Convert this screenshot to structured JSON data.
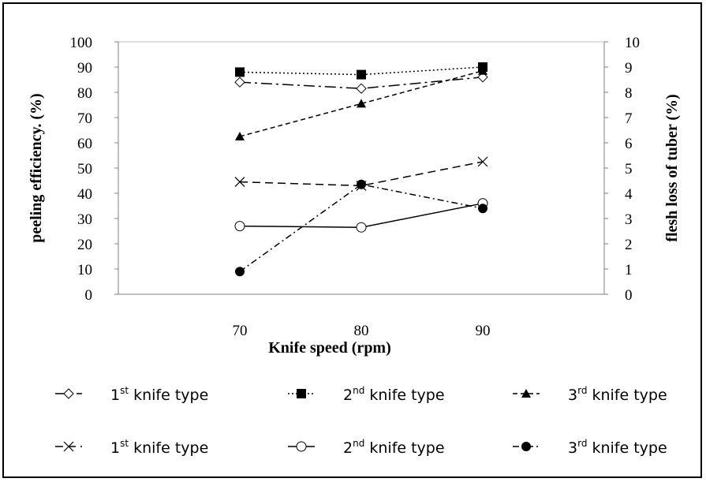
{
  "chart_data": {
    "type": "line",
    "x_label": "Knife speed (rpm)",
    "y_left_label": "peeling  efficiency. (%)",
    "y_right_label": "flesh loss of tuber (%)",
    "x_ticks": [
      "70",
      "80",
      "90"
    ],
    "x": [
      70,
      80,
      90
    ],
    "x_range": [
      60,
      100
    ],
    "y_left_range": [
      0,
      100
    ],
    "y_left_ticks": [
      "0",
      "10",
      "20",
      "30",
      "40",
      "50",
      "60",
      "70",
      "80",
      "90",
      "100"
    ],
    "y_right_range": [
      0,
      10
    ],
    "y_right_ticks": [
      "0",
      "1",
      "2",
      "3",
      "4",
      "5",
      "6",
      "7",
      "8",
      "9",
      "10"
    ],
    "grid": false,
    "legend_position": "bottom",
    "series": [
      {
        "name_num": "1",
        "name_sup": "st",
        "name_rest": " knife type",
        "axis": "left",
        "marker": "diamond-open",
        "dash": "longdashdot",
        "values": [
          84,
          81.5,
          86
        ]
      },
      {
        "name_num": "2",
        "name_sup": "nd",
        "name_rest": " knife type",
        "axis": "left",
        "marker": "square-filled",
        "dash": "dotted",
        "values": [
          88,
          87,
          90
        ]
      },
      {
        "name_num": "3",
        "name_sup": "rd",
        "name_rest": " knife type",
        "axis": "left",
        "marker": "triangle-filled",
        "dash": "dashed",
        "values": [
          62.5,
          75.5,
          88.5
        ]
      },
      {
        "name_num": "1",
        "name_sup": "st",
        "name_rest": " knife type",
        "axis": "right",
        "marker": "x",
        "dash": "longdash",
        "values": [
          4.45,
          4.3,
          5.25
        ]
      },
      {
        "name_num": "2",
        "name_sup": "nd",
        "name_rest": "  knife type",
        "axis": "right",
        "marker": "circle-open",
        "dash": "solid",
        "values": [
          2.7,
          2.65,
          3.6
        ]
      },
      {
        "name_num": "3",
        "name_sup": "rd",
        "name_rest": " knife type",
        "axis": "right",
        "marker": "circle-filled",
        "dash": "dashdot",
        "values": [
          0.9,
          4.35,
          3.4
        ]
      }
    ]
  }
}
